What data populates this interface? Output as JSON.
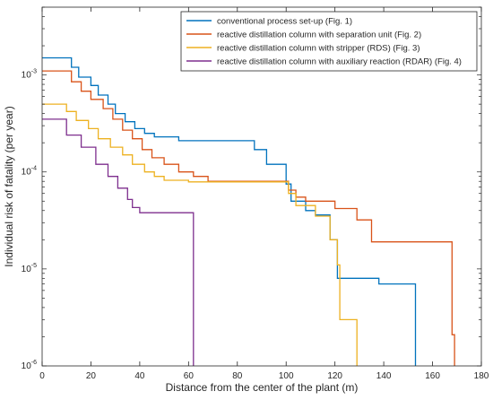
{
  "chart_data": {
    "type": "line",
    "title": "",
    "xlabel": "Distance from the center of the plant (m)",
    "ylabel": "Individual risk of fatality (per year)",
    "xlim": [
      0,
      180
    ],
    "ylim": [
      1e-06,
      0.005
    ],
    "yscale": "log",
    "grid": false,
    "legend_position": "top-right",
    "x_ticks": [
      {
        "value": 0,
        "label": "0"
      },
      {
        "value": 20,
        "label": "20"
      },
      {
        "value": 40,
        "label": "40"
      },
      {
        "value": 60,
        "label": "60"
      },
      {
        "value": 80,
        "label": "80"
      },
      {
        "value": 100,
        "label": "100"
      },
      {
        "value": 120,
        "label": "120"
      },
      {
        "value": 140,
        "label": "140"
      },
      {
        "value": 160,
        "label": "160"
      },
      {
        "value": 180,
        "label": "180"
      }
    ],
    "y_ticks": [
      {
        "value": 1e-06,
        "base": "10",
        "exp": "-6"
      },
      {
        "value": 1e-05,
        "base": "10",
        "exp": "-5"
      },
      {
        "value": 0.0001,
        "base": "10",
        "exp": "-4"
      },
      {
        "value": 0.001,
        "base": "10",
        "exp": "-3"
      }
    ],
    "series": [
      {
        "name": "conventional process set-up (Fig. 1)",
        "color": "#0072BD",
        "points": [
          [
            0,
            0.0015
          ],
          [
            12,
            0.0015
          ],
          [
            12,
            0.0012
          ],
          [
            15,
            0.0012
          ],
          [
            15,
            0.00095
          ],
          [
            20,
            0.00095
          ],
          [
            20,
            0.00078
          ],
          [
            23,
            0.00078
          ],
          [
            23,
            0.00062
          ],
          [
            27,
            0.00062
          ],
          [
            27,
            0.0005
          ],
          [
            30,
            0.0005
          ],
          [
            30,
            0.0004
          ],
          [
            34,
            0.0004
          ],
          [
            34,
            0.00033
          ],
          [
            38,
            0.00033
          ],
          [
            38,
            0.00028
          ],
          [
            42,
            0.00028
          ],
          [
            42,
            0.00025
          ],
          [
            46,
            0.00025
          ],
          [
            46,
            0.00023
          ],
          [
            56,
            0.00023
          ],
          [
            56,
            0.00021
          ],
          [
            87,
            0.00021
          ],
          [
            87,
            0.00017
          ],
          [
            92,
            0.00017
          ],
          [
            92,
            0.00012
          ],
          [
            100,
            0.00012
          ],
          [
            100,
            7.5e-05
          ],
          [
            102,
            7.5e-05
          ],
          [
            102,
            5e-05
          ],
          [
            108,
            5e-05
          ],
          [
            108,
            4e-05
          ],
          [
            112,
            4e-05
          ],
          [
            112,
            3.6e-05
          ],
          [
            118,
            3.6e-05
          ],
          [
            118,
            2e-05
          ],
          [
            121,
            2e-05
          ],
          [
            121,
            8e-06
          ],
          [
            138,
            8e-06
          ],
          [
            138,
            7e-06
          ],
          [
            153,
            7e-06
          ],
          [
            153,
            1e-06
          ]
        ]
      },
      {
        "name": "reactive distillation column with separation unit (Fig. 2)",
        "color": "#D95319",
        "points": [
          [
            0,
            0.0011
          ],
          [
            12,
            0.0011
          ],
          [
            12,
            0.00085
          ],
          [
            16,
            0.00085
          ],
          [
            16,
            0.00068
          ],
          [
            20,
            0.00068
          ],
          [
            20,
            0.00056
          ],
          [
            25,
            0.00056
          ],
          [
            25,
            0.00045
          ],
          [
            29,
            0.00045
          ],
          [
            29,
            0.00035
          ],
          [
            33,
            0.00035
          ],
          [
            33,
            0.00027
          ],
          [
            37,
            0.00027
          ],
          [
            37,
            0.00022
          ],
          [
            41,
            0.00022
          ],
          [
            41,
            0.00017
          ],
          [
            45,
            0.00017
          ],
          [
            45,
            0.00014
          ],
          [
            50,
            0.00014
          ],
          [
            50,
            0.00012
          ],
          [
            56,
            0.00012
          ],
          [
            56,
            0.0001
          ],
          [
            62,
            0.0001
          ],
          [
            62,
            9e-05
          ],
          [
            68,
            9e-05
          ],
          [
            68,
            8e-05
          ],
          [
            101,
            8e-05
          ],
          [
            101,
            6.5e-05
          ],
          [
            104,
            6.5e-05
          ],
          [
            104,
            5.5e-05
          ],
          [
            108,
            5.5e-05
          ],
          [
            108,
            5e-05
          ],
          [
            120,
            5e-05
          ],
          [
            120,
            4.2e-05
          ],
          [
            129,
            4.2e-05
          ],
          [
            129,
            3.2e-05
          ],
          [
            135,
            3.2e-05
          ],
          [
            135,
            1.9e-05
          ],
          [
            168,
            1.9e-05
          ],
          [
            168,
            2.1e-06
          ],
          [
            169,
            2.1e-06
          ],
          [
            169,
            1e-06
          ]
        ]
      },
      {
        "name": "reactive distillation column with stripper (RDS) (Fig. 3)",
        "color": "#EDB120",
        "points": [
          [
            0,
            0.0005
          ],
          [
            10,
            0.0005
          ],
          [
            10,
            0.00042
          ],
          [
            14,
            0.00042
          ],
          [
            14,
            0.00034
          ],
          [
            19,
            0.00034
          ],
          [
            19,
            0.00028
          ],
          [
            23,
            0.00028
          ],
          [
            23,
            0.00022
          ],
          [
            28,
            0.00022
          ],
          [
            28,
            0.00018
          ],
          [
            33,
            0.00018
          ],
          [
            33,
            0.00015
          ],
          [
            37,
            0.00015
          ],
          [
            37,
            0.00012
          ],
          [
            42,
            0.00012
          ],
          [
            42,
            0.0001
          ],
          [
            46,
            0.0001
          ],
          [
            46,
            9e-05
          ],
          [
            50,
            9e-05
          ],
          [
            50,
            8.2e-05
          ],
          [
            60,
            8.2e-05
          ],
          [
            60,
            7.9e-05
          ],
          [
            101,
            7.9e-05
          ],
          [
            101,
            6e-05
          ],
          [
            104,
            6e-05
          ],
          [
            104,
            4.5e-05
          ],
          [
            112,
            4.5e-05
          ],
          [
            112,
            3.5e-05
          ],
          [
            118,
            3.5e-05
          ],
          [
            118,
            2e-05
          ],
          [
            121,
            2e-05
          ],
          [
            121,
            1.1e-05
          ],
          [
            122,
            1.1e-05
          ],
          [
            122,
            3e-06
          ],
          [
            129,
            3e-06
          ],
          [
            129,
            1e-06
          ]
        ]
      },
      {
        "name": "reactive distillation column with auxiliary reaction (RDAR) (Fig. 4)",
        "color": "#7E2F8E",
        "points": [
          [
            0,
            0.00035
          ],
          [
            10,
            0.00035
          ],
          [
            10,
            0.00024
          ],
          [
            16,
            0.00024
          ],
          [
            16,
            0.00018
          ],
          [
            22,
            0.00018
          ],
          [
            22,
            0.00012
          ],
          [
            27,
            0.00012
          ],
          [
            27,
            9e-05
          ],
          [
            31,
            9e-05
          ],
          [
            31,
            6.8e-05
          ],
          [
            35,
            6.8e-05
          ],
          [
            35,
            5.2e-05
          ],
          [
            37,
            5.2e-05
          ],
          [
            37,
            4.3e-05
          ],
          [
            40,
            4.3e-05
          ],
          [
            40,
            3.8e-05
          ],
          [
            62,
            3.8e-05
          ],
          [
            62,
            1e-06
          ]
        ]
      }
    ]
  }
}
